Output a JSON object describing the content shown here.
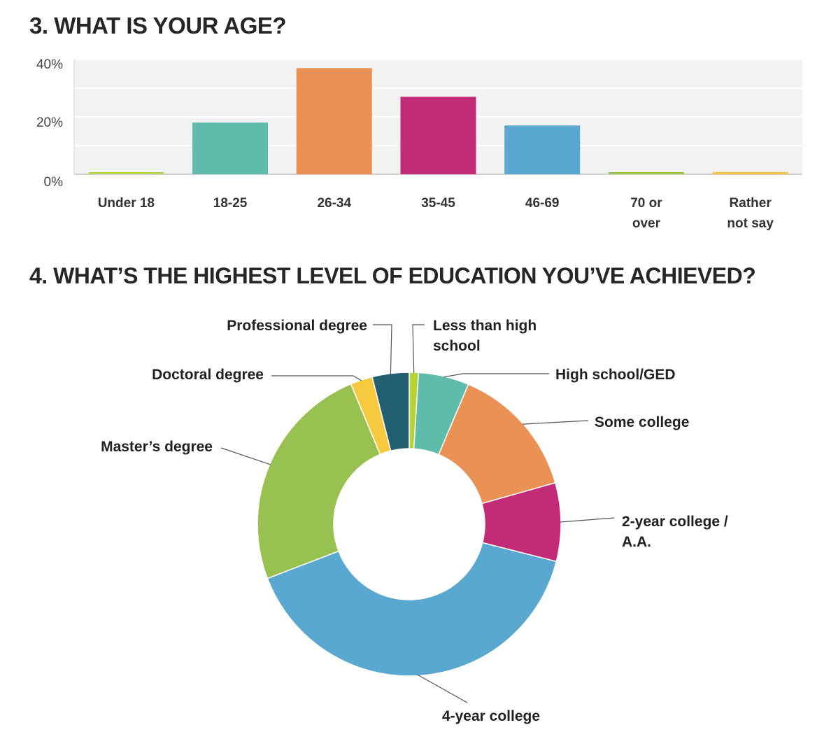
{
  "charts": {
    "age": {
      "title": "3. WHAT IS YOUR AGE?"
    },
    "education": {
      "title": "4. WHAT’S THE HIGHEST LEVEL OF EDUCATION YOU’VE ACHIEVED?"
    }
  },
  "chart_data": [
    {
      "type": "bar",
      "title": "3. WHAT IS YOUR AGE?",
      "categories": [
        [
          "Under 18"
        ],
        [
          "18-25"
        ],
        [
          "26-34"
        ],
        [
          "35-45"
        ],
        [
          "46-69"
        ],
        [
          "70 or",
          "over"
        ],
        [
          "Rather",
          "not say"
        ]
      ],
      "values": [
        0.3,
        18,
        37,
        27,
        17,
        0.3,
        0.8
      ],
      "colors": [
        "#b8d65a",
        "#5fbcab",
        "#ea9156",
        "#c22c77",
        "#5aa8d0",
        "#9cc24f",
        "#f6c74a"
      ],
      "ylim": [
        0,
        40
      ],
      "yticks": [
        "0%",
        "20%",
        "40%"
      ],
      "grid": true,
      "background": "#f2f2f2"
    },
    {
      "type": "pie",
      "subtype": "donut",
      "title": "4. WHAT’S THE HIGHEST LEVEL OF EDUCATION YOU’VE ACHIEVED?",
      "slices": [
        {
          "label": [
            "Less than high",
            "school"
          ],
          "value": 1,
          "color": "#b5d334"
        },
        {
          "label": [
            "High school/GED"
          ],
          "value": 5.5,
          "color": "#5fbcab"
        },
        {
          "label": [
            "Some college"
          ],
          "value": 14.5,
          "color": "#ea9156"
        },
        {
          "label": [
            "2-year college /",
            "A.A."
          ],
          "value": 8.5,
          "color": "#c22c77"
        },
        {
          "label": [
            "4-year college"
          ],
          "value": 41,
          "color": "#5aa8d0"
        },
        {
          "label": [
            "Master’s degree"
          ],
          "value": 25,
          "color": "#99c152"
        },
        {
          "label": [
            "Doctoral degree"
          ],
          "value": 2.4,
          "color": "#f6c93e"
        },
        {
          "label": [
            "Professional degree"
          ],
          "value": 4,
          "color": "#215f71"
        }
      ]
    }
  ]
}
